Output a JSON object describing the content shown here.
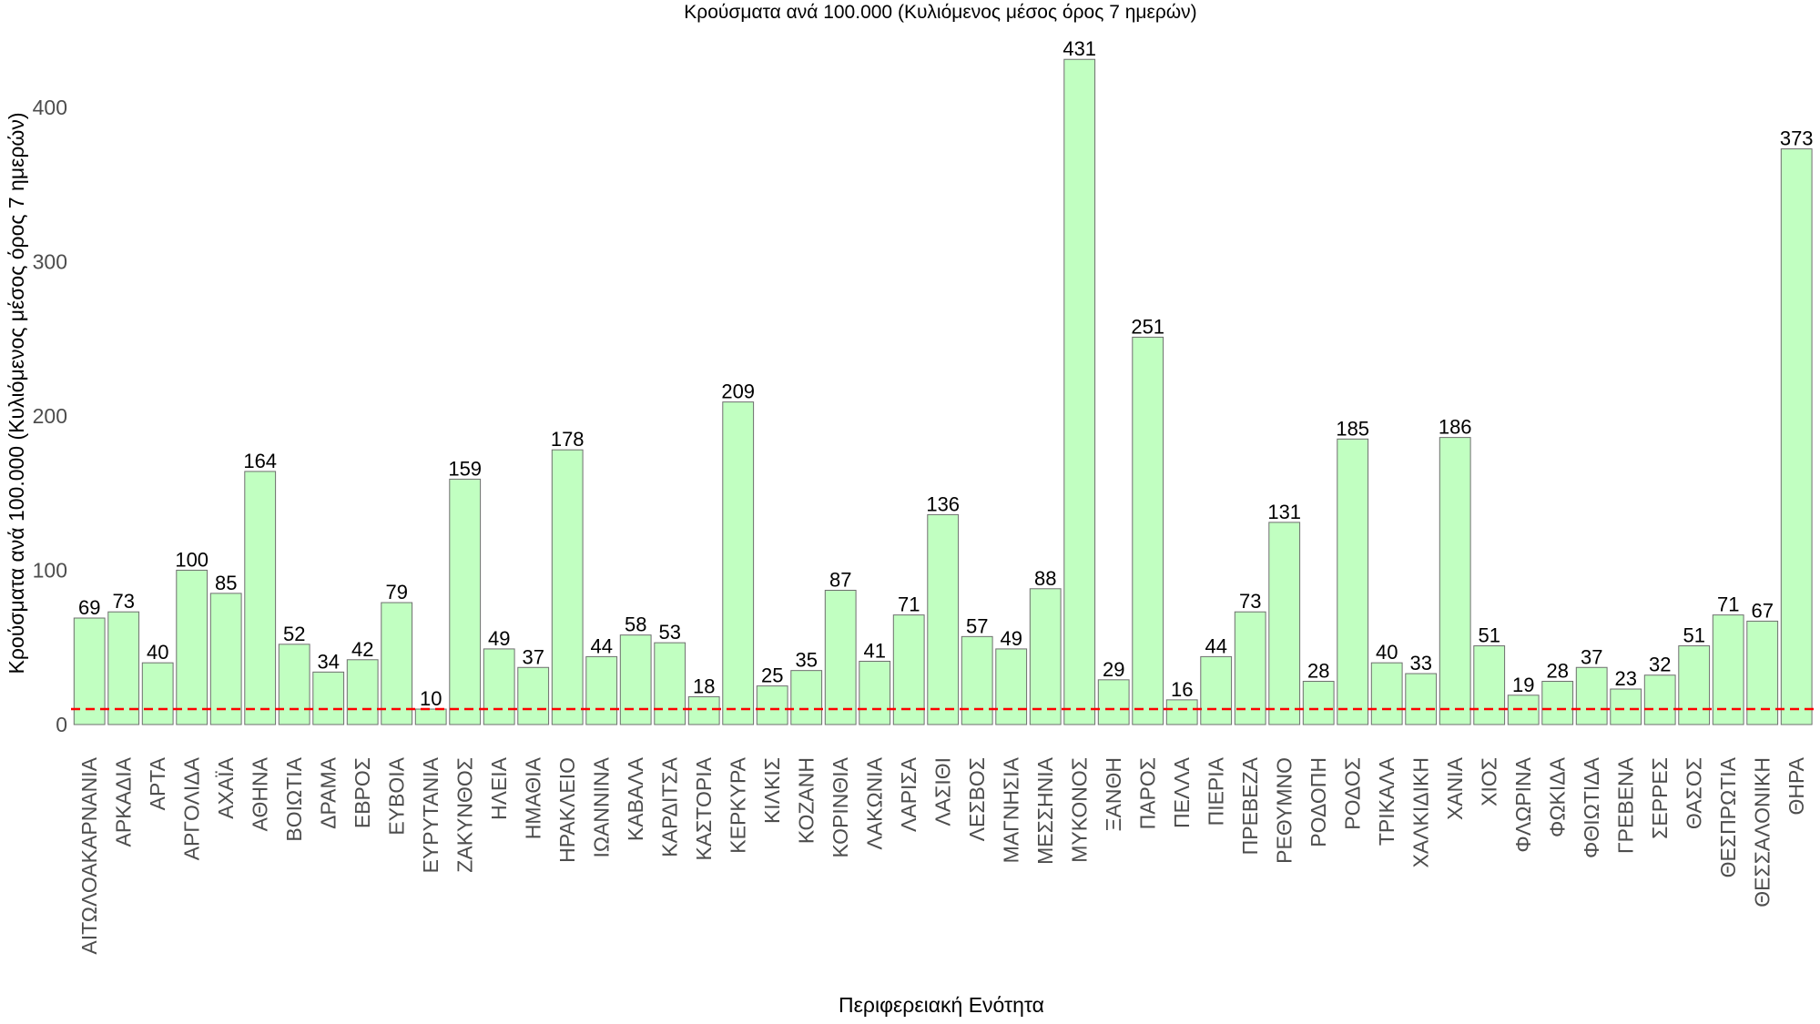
{
  "chart_data": {
    "type": "bar",
    "title": "Κρούσματα ανά 100.000 (Κυλιόμενος μέσος όρος 7 ημερών)",
    "xlabel": "Περιφερειακή Ενότητα",
    "ylabel": "Κρούσματα ανά 100.000 (Κυλιόμενος μέσος όρος 7 ημερών)",
    "categories": [
      "ΑΙΤΩΛΟΑΚΑΡΝΑΝΙΑ",
      "ΑΡΚΑΔΙΑ",
      "ΑΡΤΑ",
      "ΑΡΓΟΛΙΔΑ",
      "ΑΧΑΪΑ",
      "ΑΘΗΝΑ",
      "ΒΟΙΩΤΙΑ",
      "ΔΡΑΜΑ",
      "ΕΒΡΟΣ",
      "ΕΥΒΟΙΑ",
      "ΕΥΡΥΤΑΝΙΑ",
      "ΖΑΚΥΝΘΟΣ",
      "ΗΛΕΙΑ",
      "ΗΜΑΘΙΑ",
      "ΗΡΑΚΛΕΙΟ",
      "ΙΩΑΝΝΙΝΑ",
      "ΚΑΒΑΛΑ",
      "ΚΑΡΔΙΤΣΑ",
      "ΚΑΣΤΟΡΙΑ",
      "ΚΕΡΚΥΡΑ",
      "ΚΙΛΚΙΣ",
      "ΚΟΖΑΝΗ",
      "ΚΟΡΙΝΘΙΑ",
      "ΛΑΚΩΝΙΑ",
      "ΛΑΡΙΣΑ",
      "ΛΑΣΙΘΙ",
      "ΛΕΣΒΟΣ",
      "ΜΑΓΝΗΣΙΑ",
      "ΜΕΣΣΗΝΙΑ",
      "ΜΥΚΟΝΟΣ",
      "ΞΑΝΘΗ",
      "ΠΑΡΟΣ",
      "ΠΕΛΛΑ",
      "ΠΙΕΡΙΑ",
      "ΠΡΕΒΕΖΑ",
      "ΡΕΘΥΜΝΟ",
      "ΡΟΔΟΠΗ",
      "ΡΟΔΟΣ",
      "ΤΡΙΚΑΛΑ",
      "ΧΑΛΚΙΔΙΚΗ",
      "ΧΑΝΙΑ",
      "ΧΙΟΣ",
      "ΦΛΩΡΙΝΑ",
      "ΦΩΚΙΔΑ",
      "ΦΘΙΩΤΙΔΑ",
      "ΓΡΕΒΕΝΑ",
      "ΣΕΡΡΕΣ",
      "ΘΑΣΟΣ",
      "ΘΕΣΠΡΩΤΙΑ",
      "ΘΕΣΣΑΛΟΝΙΚΗ",
      "ΘΗΡΑ"
    ],
    "values": [
      69,
      73,
      40,
      100,
      85,
      164,
      52,
      34,
      42,
      79,
      10,
      159,
      49,
      37,
      178,
      44,
      58,
      53,
      18,
      209,
      25,
      35,
      87,
      41,
      71,
      136,
      57,
      49,
      88,
      431,
      29,
      251,
      16,
      44,
      73,
      131,
      28,
      185,
      40,
      33,
      186,
      51,
      19,
      28,
      37,
      23,
      32,
      51,
      71,
      67,
      373
    ],
    "ylim": [
      0,
      450
    ],
    "yticks": [
      0,
      100,
      200,
      300,
      400
    ],
    "reference_line": 10,
    "grid": false,
    "legend": "none",
    "colors": {
      "bar_fill": "#c1ffc1",
      "bar_stroke": "#6e6e6e",
      "reference_line": "#ff0000"
    }
  }
}
